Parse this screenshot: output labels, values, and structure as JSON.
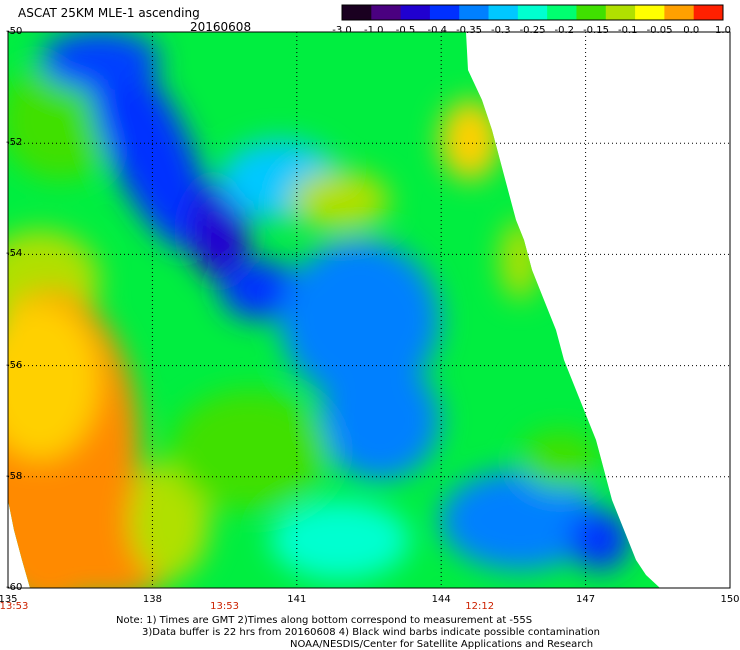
{
  "header": {
    "title": "ASCAT 25KM MLE-1 ascending",
    "date": "20160608"
  },
  "colorbar": {
    "labels": [
      "-3.0",
      "-1.0",
      "-0.5",
      "-0.4",
      "-0.35",
      "-0.3",
      "-0.25",
      "-0.2",
      "-0.15",
      "-0.1",
      "-0.05",
      "0.0",
      "1.0"
    ],
    "colors": [
      "#1a0020",
      "#4a0080",
      "#2000d0",
      "#0030ff",
      "#0080ff",
      "#00c8ff",
      "#00ffd0",
      "#00ff70",
      "#40e000",
      "#b0e000",
      "#ffff00",
      "#ffa000",
      "#ff2000"
    ]
  },
  "axes": {
    "lat_labels": [
      "-50",
      "-52",
      "-54",
      "-56",
      "-58",
      "-60"
    ],
    "lon_labels": [
      "135",
      "138",
      "141",
      "144",
      "147",
      "150"
    ],
    "time_labels": [
      "13:53",
      "13:53",
      "12:12"
    ]
  },
  "notes": {
    "line1": "Note: 1) Times are GMT 2)Times along bottom correspond to measurement at -55S",
    "line2": "3)Data buffer is 22 hrs from 20160608 4) Black wind barbs indicate possible contamination",
    "line3": "NOAA/NESDIS/Center for Satellite Applications and Research"
  },
  "map": {
    "lat_range": [
      -60,
      -50
    ],
    "lon_range": [
      135,
      150
    ]
  }
}
